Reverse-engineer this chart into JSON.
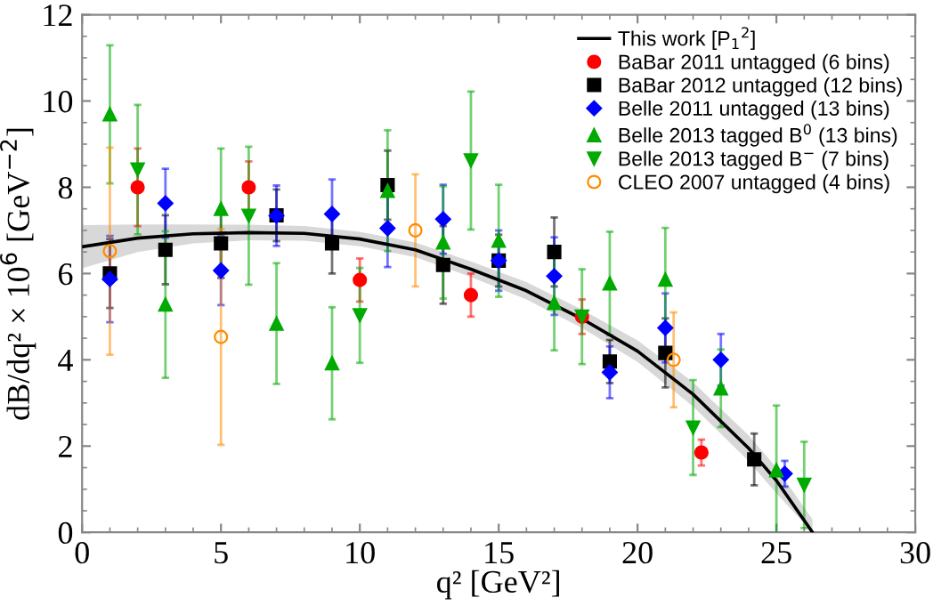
{
  "chart_data": {
    "type": "scatter",
    "xlabel": "q² [GeV²]",
    "ylabel": "dB/dq² × 10$^{6}$ [GeV$^{−2}$]",
    "xlim": [
      0,
      30
    ],
    "ylim": [
      0,
      12
    ],
    "xticks": [
      0,
      5,
      10,
      15,
      20,
      25,
      30
    ],
    "yticks": [
      0,
      2,
      4,
      6,
      8,
      10,
      12
    ],
    "grid": false,
    "legend": "top right",
    "series": [
      {
        "name": "This work [P$_{1}$$^{2}$]",
        "type": "line",
        "color": "#000000",
        "marker": "none",
        "line_style": "solid",
        "x": [
          0,
          2,
          4,
          6,
          8,
          10,
          12,
          14,
          16,
          18,
          20,
          22,
          24,
          25,
          26.3
        ],
        "values": [
          6.62,
          6.82,
          6.92,
          6.95,
          6.93,
          6.8,
          6.55,
          6.1,
          5.6,
          4.95,
          4.2,
          3.2,
          1.95,
          1.2,
          0
        ],
        "lower": [
          6.12,
          6.5,
          6.7,
          6.77,
          6.76,
          6.63,
          6.38,
          5.92,
          5.4,
          4.74,
          3.95,
          2.92,
          1.65,
          0.9,
          0
        ],
        "upper": [
          7.12,
          7.14,
          7.14,
          7.13,
          7.1,
          6.97,
          6.72,
          6.28,
          5.8,
          5.16,
          4.45,
          3.48,
          2.25,
          1.5,
          0.3
        ]
      },
      {
        "name": "BaBar 2011 untagged (6 bins)",
        "color": "#ff0000",
        "marker": "circle",
        "x": [
          2,
          6,
          10,
          14,
          18,
          22.3
        ],
        "values": [
          8.0,
          8.0,
          5.85,
          5.5,
          5.0,
          1.85
        ],
        "errors": [
          0.9,
          0.6,
          0.5,
          0.5,
          0.4,
          0.3
        ]
      },
      {
        "name": "BaBar 2012 untagged (12 bins)",
        "color": "#000000",
        "marker": "square",
        "x": [
          1,
          3,
          5,
          7,
          9,
          11,
          13,
          15,
          17,
          19,
          21,
          24.2
        ],
        "values": [
          6.0,
          6.55,
          6.7,
          7.35,
          6.7,
          8.05,
          6.2,
          6.3,
          6.5,
          3.96,
          4.16,
          1.69
        ],
        "errors": [
          0.8,
          0.8,
          0.8,
          0.6,
          0.7,
          0.8,
          0.9,
          0.6,
          0.8,
          0.5,
          0.8,
          0.6
        ]
      },
      {
        "name": "Belle 2011 untagged (13 bins)",
        "color": "#0000ff",
        "marker": "diamond",
        "x": [
          1,
          3,
          5,
          7,
          9,
          11,
          13,
          15,
          17,
          19,
          21,
          23,
          25.3
        ],
        "values": [
          5.87,
          7.63,
          6.07,
          7.34,
          7.38,
          7.05,
          7.26,
          6.3,
          5.94,
          3.71,
          4.74,
          4.0,
          1.36
        ],
        "errors": [
          1.0,
          0.8,
          0.8,
          0.7,
          0.8,
          0.9,
          0.8,
          0.7,
          0.9,
          0.6,
          0.8,
          0.6,
          0.3
        ]
      },
      {
        "name": "Belle 2013 tagged B$^{0}$ (13 bins)",
        "color": "#00aa00",
        "marker": "triangle",
        "x": [
          1,
          3,
          5,
          7,
          9,
          11,
          13,
          15,
          17,
          19,
          21,
          23,
          25
        ],
        "values": [
          9.69,
          5.28,
          7.5,
          4.84,
          3.92,
          7.92,
          6.72,
          6.76,
          5.32,
          5.77,
          5.86,
          3.34,
          1.44
        ],
        "errors": [
          1.6,
          1.7,
          1.4,
          1.4,
          1.3,
          1.4,
          1.3,
          1.3,
          1.1,
          1.2,
          1.2,
          0.9,
          1.5
        ]
      },
      {
        "name": "Belle 2013 tagged B$^{−}$ (7 bins)",
        "color": "#00aa00",
        "marker": "triangle_down",
        "x": [
          2,
          6,
          10,
          14,
          18,
          22,
          26
        ],
        "values": [
          8.41,
          7.34,
          5.03,
          8.62,
          5.0,
          2.43,
          1.1
        ],
        "errors": [
          1.5,
          1.6,
          1.1,
          1.6,
          1.1,
          1.1,
          1.0
        ]
      },
      {
        "name": "CLEO 2007 untagged (4 bins)",
        "color": "#ff8c00",
        "marker": "open_circle",
        "x": [
          1,
          5,
          12,
          21.3
        ],
        "values": [
          6.52,
          4.53,
          7.0,
          4.0
        ],
        "errors": [
          2.4,
          2.5,
          1.3,
          1.1
        ]
      }
    ]
  }
}
